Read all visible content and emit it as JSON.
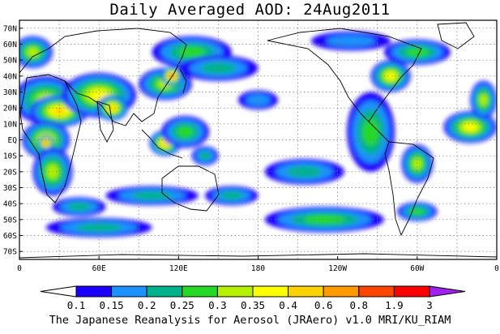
{
  "title": "Daily Averaged AOD: 24Aug2011",
  "footer": "The Japanese Reanalysis for Aerosol (JRAero) v1.0 MRI/KU_RIAM",
  "axes": {
    "lat_labels": [
      "70N",
      "60N",
      "50N",
      "40N",
      "30N",
      "20N",
      "10N",
      "EQ",
      "10S",
      "20S",
      "30S",
      "40S",
      "50S",
      "60S",
      "70S"
    ],
    "lon_labels": [
      "0",
      "60E",
      "120E",
      "180",
      "120W",
      "60W",
      "0"
    ]
  },
  "colorbar": {
    "levels": [
      "0.1",
      "0.15",
      "0.2",
      "0.25",
      "0.3",
      "0.35",
      "0.4",
      "0.6",
      "0.8",
      "1.9",
      "3"
    ],
    "colors": [
      "#ffffff",
      "#1a00ff",
      "#1e90ff",
      "#00b28c",
      "#26d926",
      "#b4f000",
      "#ffff00",
      "#ffd200",
      "#ff9b00",
      "#ff4600",
      "#ff0000",
      "#a020f0"
    ]
  },
  "chart_data": {
    "type": "heatmap",
    "field": "AOD",
    "xlim": [
      0,
      360
    ],
    "ylim": [
      -75,
      75
    ],
    "blobs": [
      {
        "lon": 20,
        "lat": 25,
        "rx": 25,
        "ry": 15,
        "level": 5
      },
      {
        "lon": 30,
        "lat": 18,
        "rx": 22,
        "ry": 10,
        "level": 7
      },
      {
        "lon": 60,
        "lat": 28,
        "rx": 28,
        "ry": 14,
        "level": 6
      },
      {
        "lon": 70,
        "lat": 20,
        "rx": 12,
        "ry": 8,
        "level": 7
      },
      {
        "lon": 110,
        "lat": 35,
        "rx": 20,
        "ry": 10,
        "level": 5
      },
      {
        "lon": 115,
        "lat": 40,
        "rx": 8,
        "ry": 6,
        "level": 9
      },
      {
        "lon": 130,
        "lat": 55,
        "rx": 30,
        "ry": 10,
        "level": 4
      },
      {
        "lon": 20,
        "lat": 0,
        "rx": 18,
        "ry": 12,
        "level": 6
      },
      {
        "lon": 20,
        "lat": -2,
        "rx": 6,
        "ry": 5,
        "level": 9
      },
      {
        "lon": 25,
        "lat": -20,
        "rx": 15,
        "ry": 15,
        "level": 5
      },
      {
        "lon": 45,
        "lat": -42,
        "rx": 20,
        "ry": 6,
        "level": 3
      },
      {
        "lon": 110,
        "lat": -2,
        "rx": 12,
        "ry": 8,
        "level": 7
      },
      {
        "lon": 125,
        "lat": 5,
        "rx": 18,
        "ry": 10,
        "level": 4
      },
      {
        "lon": 140,
        "lat": -10,
        "rx": 10,
        "ry": 6,
        "level": 3
      },
      {
        "lon": 100,
        "lat": -35,
        "rx": 35,
        "ry": 6,
        "level": 3
      },
      {
        "lon": 60,
        "lat": -55,
        "rx": 40,
        "ry": 6,
        "level": 3
      },
      {
        "lon": 150,
        "lat": 45,
        "rx": 30,
        "ry": 8,
        "level": 3
      },
      {
        "lon": 180,
        "lat": 25,
        "rx": 15,
        "ry": 6,
        "level": 2
      },
      {
        "lon": 215,
        "lat": -20,
        "rx": 30,
        "ry": 8,
        "level": 3
      },
      {
        "lon": 230,
        "lat": -50,
        "rx": 45,
        "ry": 8,
        "level": 4
      },
      {
        "lon": 265,
        "lat": 5,
        "rx": 18,
        "ry": 25,
        "level": 4
      },
      {
        "lon": 280,
        "lat": 40,
        "rx": 15,
        "ry": 10,
        "level": 6
      },
      {
        "lon": 300,
        "lat": 55,
        "rx": 25,
        "ry": 8,
        "level": 4
      },
      {
        "lon": 300,
        "lat": -15,
        "rx": 12,
        "ry": 12,
        "level": 5
      },
      {
        "lon": 300,
        "lat": -45,
        "rx": 15,
        "ry": 6,
        "level": 4
      },
      {
        "lon": 340,
        "lat": 8,
        "rx": 20,
        "ry": 10,
        "level": 6
      },
      {
        "lon": 350,
        "lat": 25,
        "rx": 10,
        "ry": 12,
        "level": 5
      },
      {
        "lon": 10,
        "lat": 55,
        "rx": 15,
        "ry": 10,
        "level": 5
      },
      {
        "lon": 250,
        "lat": 62,
        "rx": 30,
        "ry": 6,
        "level": 2
      },
      {
        "lon": 160,
        "lat": -35,
        "rx": 20,
        "ry": 6,
        "level": 3
      }
    ]
  }
}
